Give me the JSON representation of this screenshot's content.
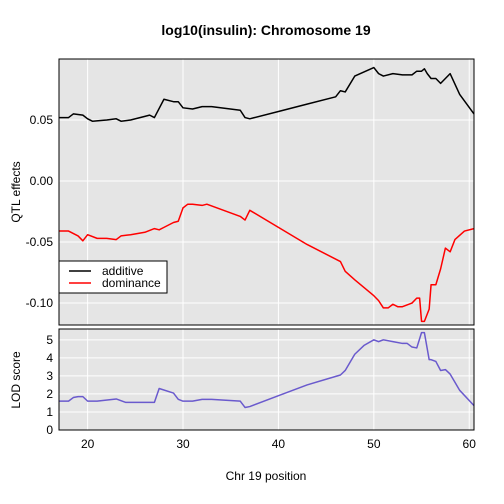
{
  "chart_data": [
    {
      "type": "line",
      "title": "log10(insulin): Chromosome 19",
      "ylabel": "QTL effects",
      "xlim": [
        17,
        60.5
      ],
      "ylim": [
        -0.118,
        0.1
      ],
      "grid": true,
      "yticks": [
        {
          "value": 0.05,
          "label": "0.05"
        },
        {
          "value": 0.0,
          "label": "0.00"
        },
        {
          "value": -0.05,
          "label": "-0.05"
        },
        {
          "value": -0.1,
          "label": "-0.10"
        }
      ],
      "legend": {
        "placement": "bottom-left",
        "entries": [
          "additive",
          "dominance"
        ]
      },
      "series": [
        {
          "name": "additive",
          "color": "#000000",
          "x": [
            17,
            18,
            18.5,
            19.5,
            20,
            20.5,
            22,
            23,
            23.5,
            24.5,
            26,
            26.5,
            27,
            28,
            29,
            29.5,
            30,
            31,
            32,
            33,
            36,
            36.5,
            37,
            40,
            43,
            46,
            46.5,
            47,
            48,
            50,
            50.5,
            51,
            52,
            53,
            54,
            54.5,
            55,
            55.3,
            55.6,
            56,
            56.5,
            57,
            57.5,
            58,
            59,
            60.5
          ],
          "y": [
            0.052,
            0.052,
            0.055,
            0.054,
            0.051,
            0.049,
            0.05,
            0.051,
            0.049,
            0.05,
            0.053,
            0.054,
            0.052,
            0.067,
            0.065,
            0.065,
            0.06,
            0.059,
            0.061,
            0.061,
            0.058,
            0.052,
            0.051,
            0.057,
            0.063,
            0.069,
            0.074,
            0.073,
            0.086,
            0.093,
            0.088,
            0.086,
            0.088,
            0.087,
            0.087,
            0.09,
            0.09,
            0.092,
            0.088,
            0.084,
            0.084,
            0.08,
            0.084,
            0.088,
            0.071,
            0.055
          ]
        },
        {
          "name": "dominance",
          "color": "#ff0000",
          "x": [
            17,
            18,
            19,
            19.5,
            20,
            21,
            22,
            23,
            23.5,
            24.5,
            26,
            27,
            27.5,
            28,
            29,
            29.5,
            30,
            30.5,
            31,
            32,
            32.5,
            36,
            36.5,
            37,
            40,
            43,
            46.5,
            47,
            48,
            50,
            50.5,
            51,
            51.5,
            52,
            52.5,
            53,
            54,
            54.5,
            54.8,
            55,
            55.3,
            55.8,
            56,
            56.5,
            57,
            57.5,
            58,
            58.5,
            59.5,
            60.5
          ],
          "y": [
            -0.041,
            -0.041,
            -0.045,
            -0.049,
            -0.044,
            -0.047,
            -0.047,
            -0.048,
            -0.045,
            -0.044,
            -0.042,
            -0.039,
            -0.04,
            -0.038,
            -0.034,
            -0.033,
            -0.022,
            -0.019,
            -0.019,
            -0.02,
            -0.019,
            -0.029,
            -0.032,
            -0.024,
            -0.038,
            -0.052,
            -0.066,
            -0.074,
            -0.081,
            -0.094,
            -0.098,
            -0.104,
            -0.104,
            -0.101,
            -0.103,
            -0.103,
            -0.1,
            -0.096,
            -0.096,
            -0.115,
            -0.115,
            -0.105,
            -0.085,
            -0.085,
            -0.072,
            -0.055,
            -0.058,
            -0.048,
            -0.041,
            -0.039
          ]
        }
      ]
    },
    {
      "type": "line",
      "ylabel": "LOD score",
      "xlabel": "Chr 19 position",
      "xlim": [
        17,
        60.5
      ],
      "ylim": [
        0,
        5.6
      ],
      "grid": true,
      "xticks": [
        20,
        30,
        40,
        50,
        60
      ],
      "yticks": [
        0,
        1,
        2,
        3,
        4,
        5
      ],
      "series": [
        {
          "color": "#6a5acd",
          "x": [
            17,
            17.5,
            18,
            18.5,
            19,
            19.5,
            20,
            21,
            23,
            24,
            26,
            27,
            27.5,
            29,
            29.5,
            30,
            30.5,
            31,
            32,
            33,
            36,
            36.5,
            37,
            40,
            43,
            46.5,
            47,
            48,
            49,
            50,
            50.5,
            51,
            52,
            53,
            53.5,
            54,
            54.5,
            55,
            55.3,
            55.8,
            56,
            56.5,
            57,
            57.5,
            58,
            59,
            60.5
          ],
          "y": [
            1.6,
            1.6,
            1.6,
            1.8,
            1.85,
            1.85,
            1.6,
            1.6,
            1.72,
            1.53,
            1.53,
            1.53,
            2.3,
            2.05,
            1.7,
            1.6,
            1.6,
            1.6,
            1.7,
            1.7,
            1.6,
            1.25,
            1.3,
            1.9,
            2.5,
            3.05,
            3.3,
            4.2,
            4.7,
            5.0,
            4.9,
            5.0,
            4.9,
            4.8,
            4.8,
            4.6,
            4.55,
            5.4,
            5.4,
            3.9,
            3.9,
            3.8,
            3.3,
            3.35,
            3.1,
            2.2,
            1.35
          ]
        }
      ]
    }
  ]
}
